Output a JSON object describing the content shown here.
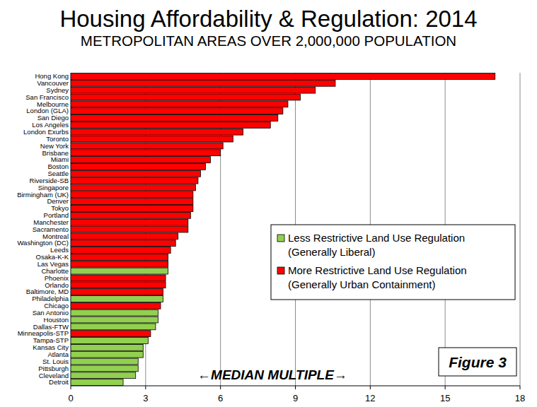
{
  "chart_data": {
    "type": "bar",
    "orientation": "horizontal",
    "title": "Housing Affordability & Regulation: 2014",
    "subtitle": "METROPOLITAN AREAS OVER 2,000,000 POPULATION",
    "x_label": "←MEDIAN MULTIPLE→",
    "annotations": [
      "Figure 3"
    ],
    "categories": [
      "Hong Kong",
      "Vancouver",
      "Sydney",
      "San Francisco",
      "Melbourne",
      "London (GLA)",
      "San Diego",
      "Los Angeles",
      "London Exurbs",
      "Toronto",
      "New York",
      "Brisbane",
      "Miami",
      "Boston",
      "Seattle",
      "Riverside-SB",
      "Singapore",
      "Birmingham (UK)",
      "Denver",
      "Tokyo",
      "Portland",
      "Manchester",
      "Sacramento",
      "Montreal",
      "Washington (DC)",
      "Leeds",
      "Osaka-K-K",
      "Las Vegas",
      "Charlotte",
      "Phoenix",
      "Orlando",
      "Baltimore, MD",
      "Philadelphia",
      "Chicago",
      "San Antonio",
      "Houston",
      "Dallas-FTW",
      "Minneapolis-STP",
      "Tampa-STP",
      "Kansas City",
      "Atlanta",
      "St. Louis",
      "Pittsburgh",
      "Cleveland",
      "Detroit"
    ],
    "series": [
      {
        "name": "Less Restrictive Land Use Regulation (Generally Liberal)",
        "color": "#92d050",
        "values": [
          null,
          null,
          null,
          null,
          null,
          null,
          null,
          null,
          null,
          null,
          null,
          null,
          null,
          null,
          null,
          null,
          null,
          null,
          null,
          null,
          null,
          null,
          null,
          null,
          null,
          null,
          null,
          null,
          3.9,
          null,
          null,
          null,
          3.7,
          null,
          3.5,
          3.5,
          3.4,
          null,
          3.1,
          2.9,
          2.9,
          2.7,
          2.7,
          2.6,
          2.1
        ]
      },
      {
        "name": "More Restrictive Land Use Regulation (Generally Urban Containment)",
        "color": "#ff0000",
        "values": [
          17.0,
          10.6,
          9.8,
          9.2,
          8.7,
          8.5,
          8.3,
          8.0,
          6.9,
          6.5,
          6.1,
          6.0,
          5.6,
          5.4,
          5.2,
          5.1,
          5.0,
          4.9,
          4.9,
          4.9,
          4.8,
          4.7,
          4.7,
          4.3,
          4.2,
          4.0,
          3.9,
          3.9,
          null,
          3.8,
          3.8,
          3.7,
          null,
          3.6,
          null,
          null,
          null,
          3.2,
          null,
          null,
          null,
          null,
          null,
          null,
          null
        ]
      }
    ],
    "xlim": [
      0,
      18
    ],
    "xticks": [
      0,
      3,
      6,
      9,
      12,
      15,
      18
    ],
    "grid": true,
    "legend": "right"
  }
}
